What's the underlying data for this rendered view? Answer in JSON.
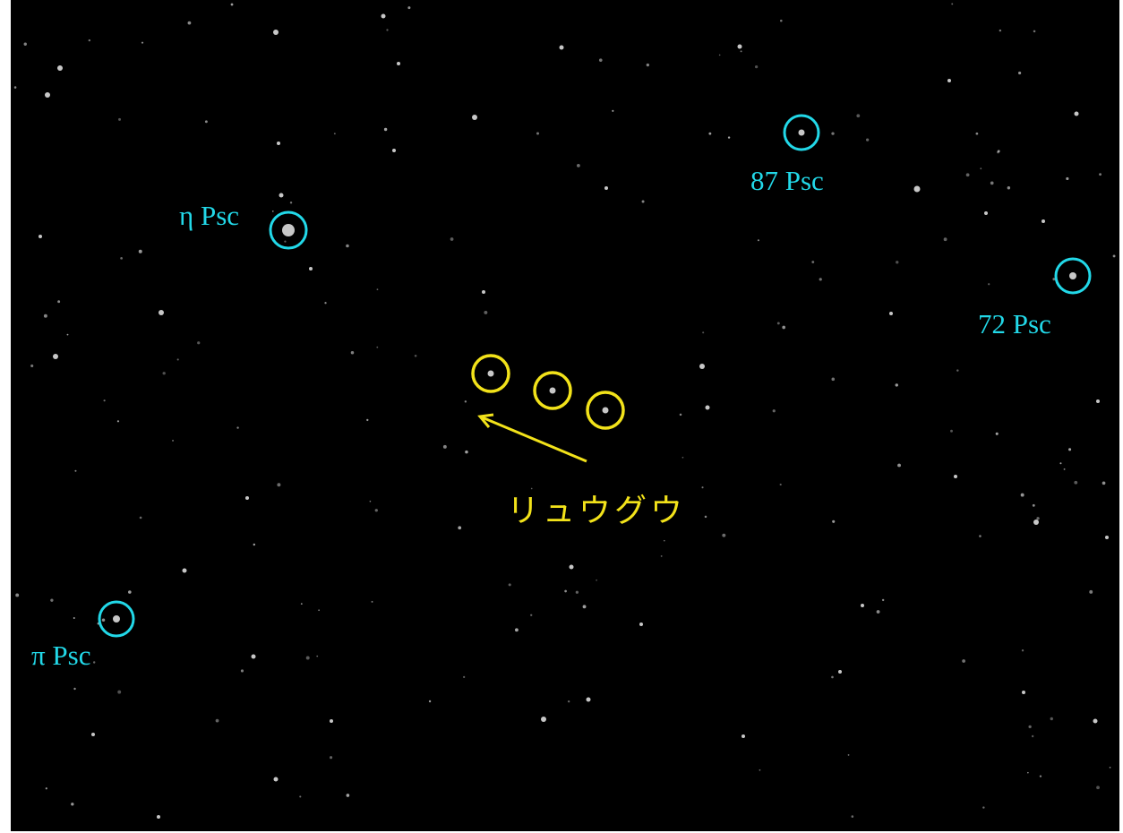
{
  "reference_stars": [
    {
      "label": "η Psc"
    },
    {
      "label": "87 Psc"
    },
    {
      "label": "72 Psc"
    },
    {
      "label": "π Psc"
    }
  ],
  "target": {
    "label": "リュウグウ"
  }
}
